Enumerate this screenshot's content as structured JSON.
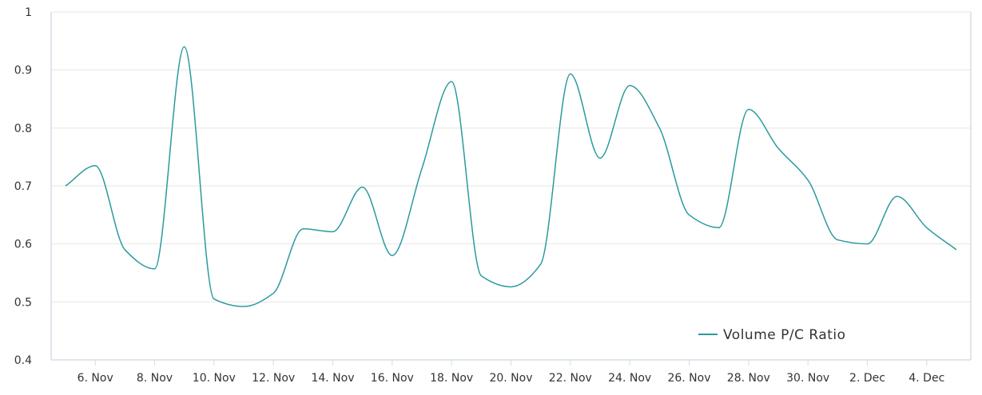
{
  "chart_data": {
    "type": "line",
    "title": "",
    "xlabel": "",
    "ylabel": "",
    "ylim": [
      0.4,
      1
    ],
    "yticks": [
      "0.4",
      "0.5",
      "0.6",
      "0.7",
      "0.8",
      "0.9",
      "1"
    ],
    "xlim": [
      "2023-11-05",
      "2023-12-05"
    ],
    "xticks": [
      {
        "date": "2023-11-06",
        "label": "6. Nov"
      },
      {
        "date": "2023-11-08",
        "label": "8. Nov"
      },
      {
        "date": "2023-11-10",
        "label": "10. Nov"
      },
      {
        "date": "2023-11-12",
        "label": "12. Nov"
      },
      {
        "date": "2023-11-14",
        "label": "14. Nov"
      },
      {
        "date": "2023-11-16",
        "label": "16. Nov"
      },
      {
        "date": "2023-11-18",
        "label": "18. Nov"
      },
      {
        "date": "2023-11-20",
        "label": "20. Nov"
      },
      {
        "date": "2023-11-22",
        "label": "22. Nov"
      },
      {
        "date": "2023-11-24",
        "label": "24. Nov"
      },
      {
        "date": "2023-11-26",
        "label": "26. Nov"
      },
      {
        "date": "2023-11-28",
        "label": "28. Nov"
      },
      {
        "date": "2023-11-30",
        "label": "30. Nov"
      },
      {
        "date": "2023-12-02",
        "label": "2. Dec"
      },
      {
        "date": "2023-12-04",
        "label": "4. Dec"
      }
    ],
    "grid": true,
    "legend_position": "bottom-right",
    "series": [
      {
        "name": "Volume P/C Ratio",
        "color": "#2a9a9e",
        "points": [
          {
            "x": "2023-11-05",
            "y": 0.7
          },
          {
            "x": "2023-11-06",
            "y": 0.735
          },
          {
            "x": "2023-11-07",
            "y": 0.59
          },
          {
            "x": "2023-11-08",
            "y": 0.557
          },
          {
            "x": "2023-11-09",
            "y": 0.94
          },
          {
            "x": "2023-11-10",
            "y": 0.505
          },
          {
            "x": "2023-11-11",
            "y": 0.492
          },
          {
            "x": "2023-11-12",
            "y": 0.515
          },
          {
            "x": "2023-11-13",
            "y": 0.626
          },
          {
            "x": "2023-11-14",
            "y": 0.621
          },
          {
            "x": "2023-11-15",
            "y": 0.698
          },
          {
            "x": "2023-11-16",
            "y": 0.58
          },
          {
            "x": "2023-11-17",
            "y": 0.73
          },
          {
            "x": "2023-11-18",
            "y": 0.88
          },
          {
            "x": "2023-11-19",
            "y": 0.545
          },
          {
            "x": "2023-11-20",
            "y": 0.526
          },
          {
            "x": "2023-11-21",
            "y": 0.565
          },
          {
            "x": "2023-11-22",
            "y": 0.893
          },
          {
            "x": "2023-11-23",
            "y": 0.748
          },
          {
            "x": "2023-11-24",
            "y": 0.873
          },
          {
            "x": "2023-11-25",
            "y": 0.8
          },
          {
            "x": "2023-11-26",
            "y": 0.65
          },
          {
            "x": "2023-11-27",
            "y": 0.628
          },
          {
            "x": "2023-11-28",
            "y": 0.832
          },
          {
            "x": "2023-11-29",
            "y": 0.765
          },
          {
            "x": "2023-11-30",
            "y": 0.71
          },
          {
            "x": "2023-12-01",
            "y": 0.607
          },
          {
            "x": "2023-12-02",
            "y": 0.6
          },
          {
            "x": "2023-12-03",
            "y": 0.682
          },
          {
            "x": "2023-12-04",
            "y": 0.628
          },
          {
            "x": "2023-12-05",
            "y": 0.59
          }
        ]
      }
    ]
  }
}
